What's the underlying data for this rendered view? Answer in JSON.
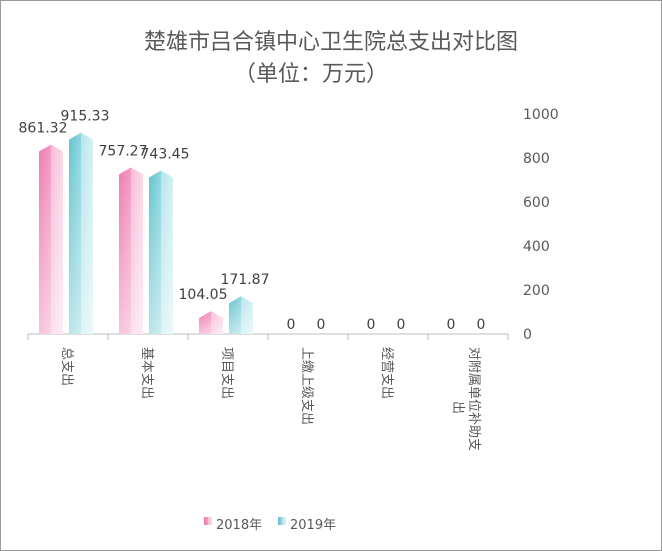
{
  "chart_data": {
    "type": "bar",
    "title": "楚雄市吕合镇中心卫生院总支出对比图",
    "subtitle": "（单位：万元）",
    "categories": [
      "总支出",
      "基本支出",
      "项目支出",
      "上缴上级支出",
      "经营支出",
      "对附属单位补助支出"
    ],
    "series": [
      {
        "name": "2018年",
        "values": [
          861.32,
          757.27,
          104.05,
          0,
          0,
          0
        ],
        "color": "#f07fb0"
      },
      {
        "name": "2019年",
        "values": [
          915.33,
          743.45,
          171.87,
          0,
          0,
          0
        ],
        "color": "#6ccbd6"
      }
    ],
    "y_ticks": [
      0,
      200,
      400,
      600,
      800,
      1000
    ],
    "ylim": [
      0,
      1000
    ],
    "y_axis_side": "right",
    "grid": false,
    "legend": "bottom"
  }
}
